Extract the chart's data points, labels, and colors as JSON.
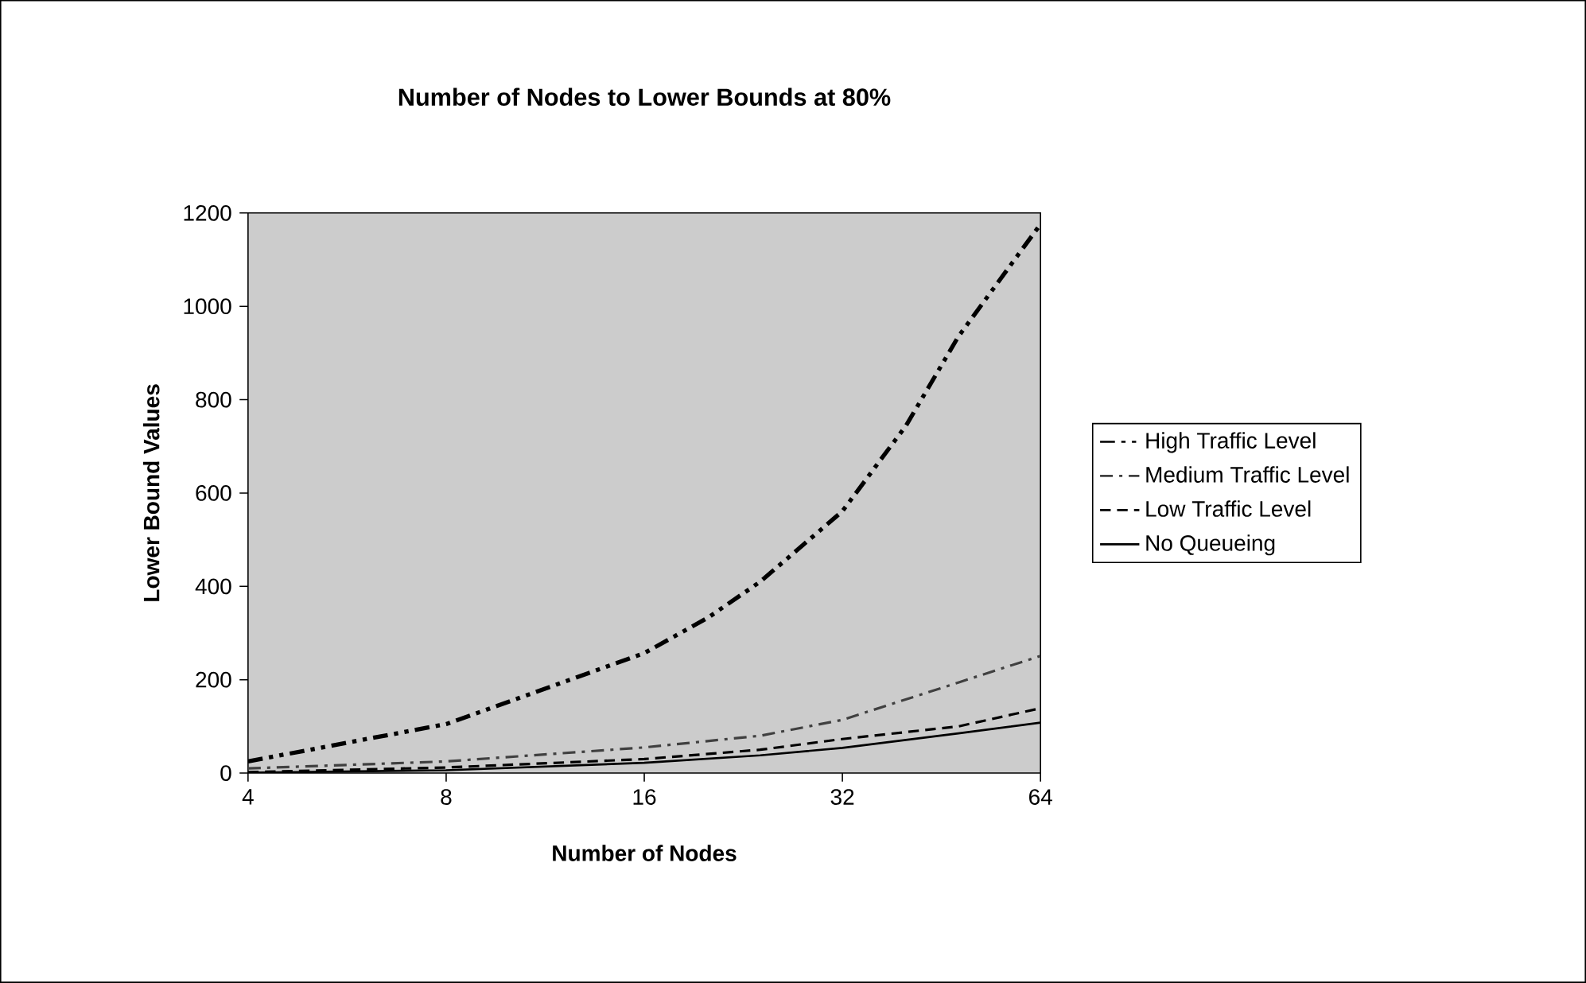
{
  "chart_data": {
    "type": "line",
    "title": "Number of Nodes to Lower Bounds at 80%",
    "xlabel": "Number of Nodes",
    "ylabel": "Lower Bound Values",
    "log": "x",
    "xlim": [
      4,
      64
    ],
    "xticks": [
      4,
      8,
      16,
      32,
      64
    ],
    "ylim": [
      0,
      1200
    ],
    "yticks": [
      0,
      200,
      400,
      600,
      800,
      1000,
      1200
    ],
    "grid": false,
    "legend": "right",
    "series": [
      {
        "name": "High Traffic Level",
        "color": "#000000",
        "line_style": "dashdotdot",
        "x": [
          4,
          8,
          12,
          16,
          20,
          24,
          32,
          40,
          48,
          64
        ],
        "values": [
          25,
          105,
          194,
          257,
          333,
          410,
          561,
          745,
          935,
          1176
        ]
      },
      {
        "name": "Medium Traffic Level",
        "color": "#404040",
        "line_style": "dashdot",
        "x": [
          4,
          8,
          16,
          24,
          32,
          48,
          64
        ],
        "values": [
          10,
          25,
          55,
          80,
          114,
          194,
          251
        ]
      },
      {
        "name": "Low  Traffic Level",
        "color": "#000000",
        "line_style": "dashed",
        "x": [
          4,
          8,
          16,
          24,
          32,
          48,
          64
        ],
        "values": [
          2,
          12,
          30,
          50,
          73,
          100,
          139
        ]
      },
      {
        "name": "No Queueing",
        "color": "#000000",
        "line_style": "solid",
        "x": [
          4,
          8,
          16,
          24,
          32,
          48,
          64
        ],
        "values": [
          1,
          6,
          22,
          38,
          54,
          85,
          108
        ]
      }
    ]
  }
}
